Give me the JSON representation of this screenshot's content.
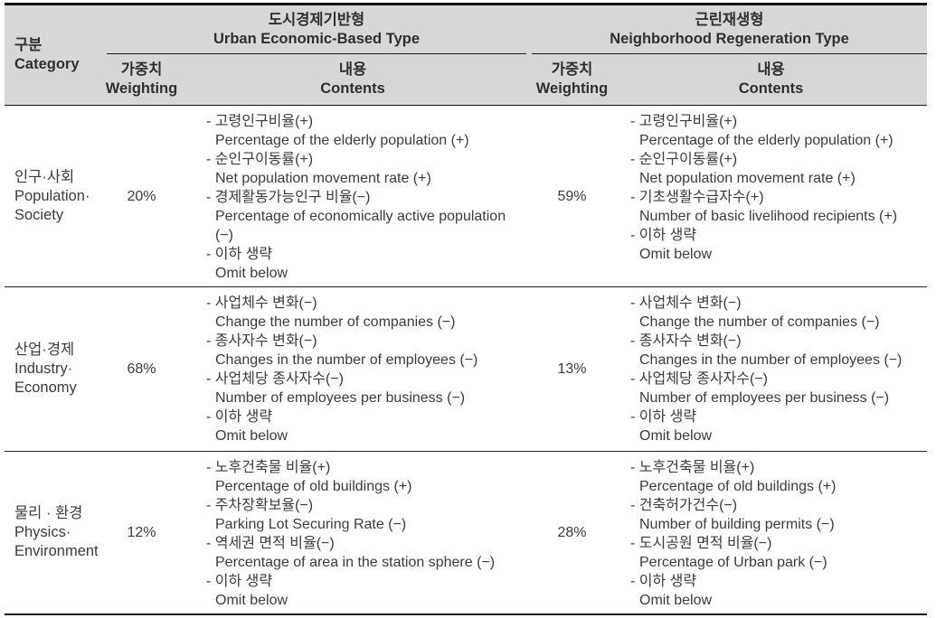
{
  "table": {
    "category_header": {
      "ko": "구분",
      "en": "Category"
    },
    "groups": [
      {
        "title_ko": "도시경제기반형",
        "title_en": "Urban Economic-Based Type",
        "weighting_ko": "가중치",
        "weighting_en": "Weighting",
        "contents_ko": "내용",
        "contents_en": "Contents"
      },
      {
        "title_ko": "근린재생형",
        "title_en": "Neighborhood Regeneration Type",
        "weighting_ko": "가중치",
        "weighting_en": "Weighting",
        "contents_ko": "내용",
        "contents_en": "Contents"
      }
    ],
    "rows": [
      {
        "category_ko": "인구·사회",
        "category_en1": "Population·",
        "category_en2": "Society",
        "urban": {
          "weighting": "20%",
          "items": [
            {
              "ko": "고령인구비율(+)",
              "en": "Percentage of the elderly population (+)"
            },
            {
              "ko": "순인구이동률(+)",
              "en": "Net population movement rate (+)"
            },
            {
              "ko": "경제활동가능인구 비율(−)",
              "en": "Percentage of economically active population (−)"
            },
            {
              "ko": "이하 생략",
              "en": "Omit below"
            }
          ]
        },
        "neighborhood": {
          "weighting": "59%",
          "items": [
            {
              "ko": "고령인구비율(+)",
              "en": "Percentage of the elderly population (+)"
            },
            {
              "ko": "순인구이동률(+)",
              "en": "Net population movement rate (+)"
            },
            {
              "ko": "기초생활수급자수(+)",
              "en": "Number of basic livelihood recipients (+)"
            },
            {
              "ko": "이하 생략",
              "en": "Omit below"
            }
          ]
        }
      },
      {
        "category_ko": "산업·경제",
        "category_en1": "Industry·",
        "category_en2": "Economy",
        "urban": {
          "weighting": "68%",
          "items": [
            {
              "ko": "사업체수 변화(−)",
              "en": "Change the number of companies (−)"
            },
            {
              "ko": "종사자수 변화(−)",
              "en": "Changes in the number of employees (−)"
            },
            {
              "ko": "사업체당 종사자수(−)",
              "en": "Number of employees per business (−)"
            },
            {
              "ko": "이하 생략",
              "en": "Omit below"
            }
          ]
        },
        "neighborhood": {
          "weighting": "13%",
          "items": [
            {
              "ko": "사업체수 변화(−)",
              "en": "Change the number of companies (−)"
            },
            {
              "ko": "종사자수 변화(−)",
              "en": "Changes in the number of employees (−)"
            },
            {
              "ko": "사업체당 종사자수(−)",
              "en": "Number of employees per business (−)"
            },
            {
              "ko": "이하 생략",
              "en": "Omit below"
            }
          ]
        }
      },
      {
        "category_ko": "물리 · 환경",
        "category_en1": "Physics·",
        "category_en2": "Environment",
        "urban": {
          "weighting": "12%",
          "items": [
            {
              "ko": "노후건축물 비율(+)",
              "en": "Percentage of old buildings (+)"
            },
            {
              "ko": "주차장확보율(−)",
              "en": "Parking Lot Securing Rate (−)"
            },
            {
              "ko": "역세권 면적 비율(−)",
              "en": "Percentage of area in the station sphere (−)"
            },
            {
              "ko": "이하 생략",
              "en": "Omit below"
            }
          ]
        },
        "neighborhood": {
          "weighting": "28%",
          "items": [
            {
              "ko": "노후건축물 비율(+)",
              "en": "Percentage of old buildings (+)"
            },
            {
              "ko": "건축허가건수(−)",
              "en": "Number of building permits (−)"
            },
            {
              "ko": "도시공원 면적 비율(−)",
              "en": "Percentage of Urban park (−)"
            },
            {
              "ko": "이하 생략",
              "en": "Omit below"
            }
          ]
        }
      }
    ],
    "colors": {
      "header_bg": "#d7d7d7",
      "border": "#141414",
      "text": "#3b3b3b"
    }
  }
}
